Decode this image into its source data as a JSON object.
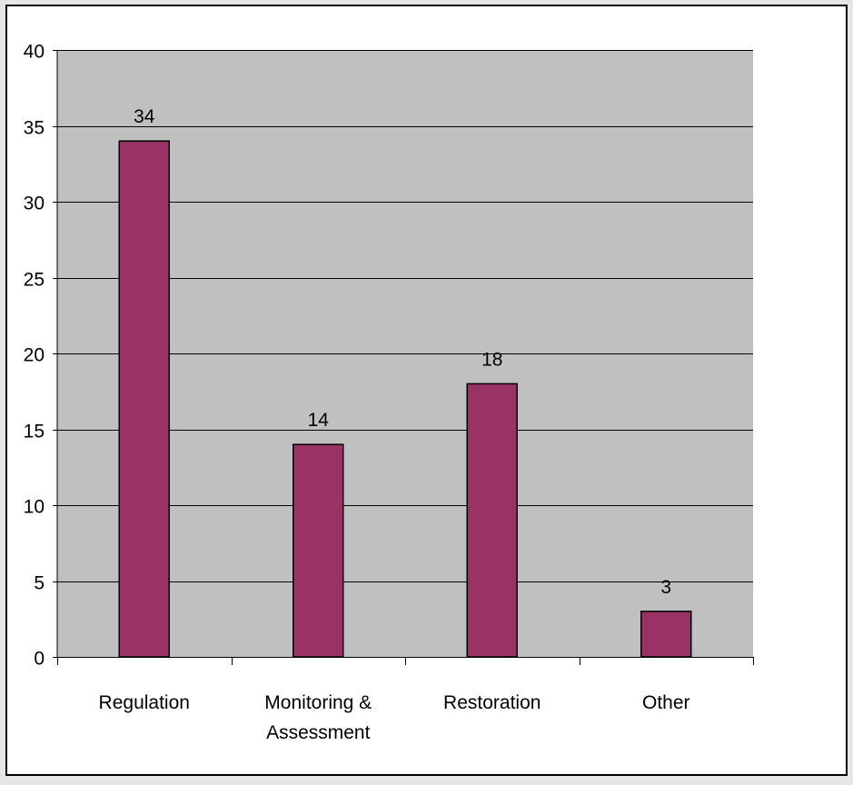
{
  "colors": {
    "page_background": "#e6e6e6",
    "chart_area": "#ffffff",
    "plot_area": "#c0c0c0",
    "bar_fill": "#993366",
    "bar_stroke": "#000000",
    "gridline": "#000000",
    "text": "#000000"
  },
  "chart_data": {
    "type": "bar",
    "title": "",
    "xlabel": "",
    "ylabel": "",
    "categories": [
      [
        "Regulation"
      ],
      [
        "Monitoring &",
        "Assessment"
      ],
      [
        "Restoration"
      ],
      [
        "Other"
      ]
    ],
    "values": [
      34,
      14,
      18,
      3
    ],
    "data_labels": [
      "34",
      "14",
      "18",
      "3"
    ],
    "ylim": [
      0,
      40
    ],
    "yticks": [
      0,
      5,
      10,
      15,
      20,
      25,
      30,
      35,
      40
    ],
    "grid": "horizontal major gridlines",
    "legend": "none"
  }
}
